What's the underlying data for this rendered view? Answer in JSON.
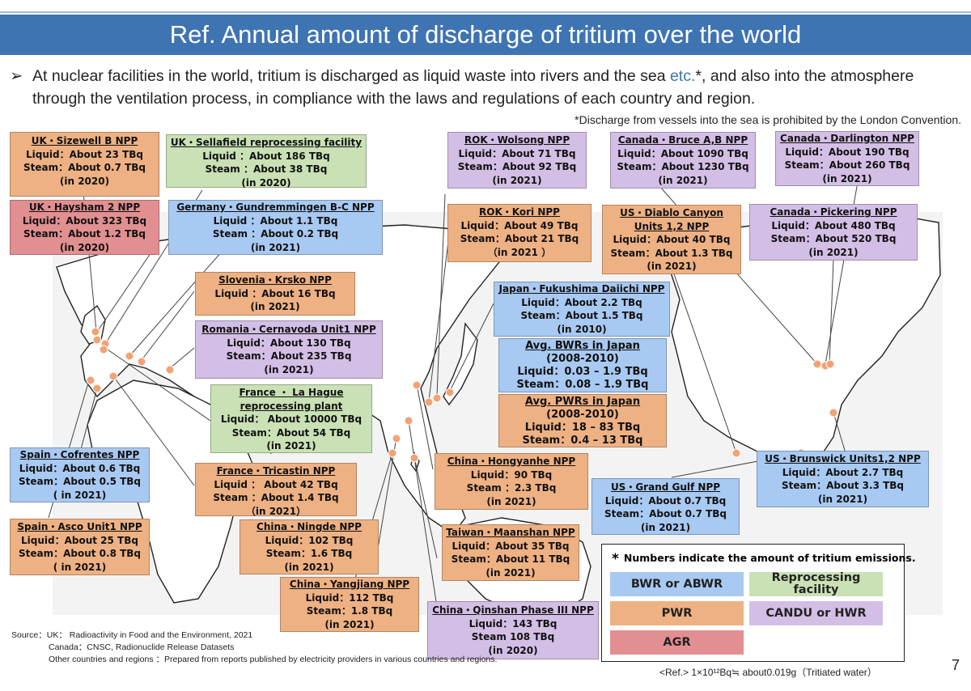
{
  "title": "Ref. Annual amount of discharge of tritium over the world",
  "intro": {
    "arrow": "➢",
    "text_before": "At nuclear facilities in the world, tritium is discharged as liquid waste into rivers and the sea ",
    "etc": "etc.",
    "text_after": "*, and also into the atmosphere through the ventilation process, in compliance with the laws and regulations of each country and region."
  },
  "note": "*Discharge from vessels into the sea is prohibited by the London Convention.",
  "colors": {
    "pwr": "#eeb183",
    "bwr": "#a8c9f1",
    "reprocessing": "#c9e1b5",
    "candu": "#d3bfe5",
    "agr": "#e28f91",
    "title_bar": "#3f74b3"
  },
  "facilities": {
    "sizewell": {
      "name": "UK・Sizewell B NPP",
      "liquid": "Liquid：About 23 TBq",
      "steam": "Steam：About 0.7 TBq",
      "year": "(in 2020)"
    },
    "sellafield": {
      "name": "UK・Sellafield reprocessing facility",
      "liquid": "Liquid ：About 186 TBq",
      "steam": "Steam  ：About 38 TBq",
      "year": "(in 2020)"
    },
    "haysham": {
      "name": "UK・Haysham 2 NPP",
      "liquid": "Liquid：About 323 TBq",
      "steam": "Steam：About 1.2 TBq",
      "year": "(in 2020)"
    },
    "gundremmingen": {
      "name": "Germany・Gundremmingen B-C NPP",
      "liquid": "Liquid ：About 1.1 TBq",
      "steam": "Steam ：About 0.2 TBq",
      "year": "(in 2021)"
    },
    "krsko": {
      "name": "Slovenia・Krsko NPP",
      "liquid": "Liquid ：About 16 TBq",
      "year": "(in 2021)"
    },
    "cernavoda": {
      "name": "Romania・Cernavoda Unit1 NPP",
      "liquid": "Liquid：About 130 TBq",
      "steam": "Steam：About 235 TBq",
      "year": "(in 2021)"
    },
    "lahague": {
      "name": "France ・ La Hague",
      "name2": "reprocessing plant",
      "liquid": "Liquid： About 10000 TBq",
      "steam": "Steam：About 54 TBq",
      "year": "(in 2021)"
    },
    "cofrentes": {
      "name": "Spain・Cofrentes NPP",
      "liquid": "Liquid：About 0.6 TBq",
      "steam": "Steam：About 0.5 TBq",
      "year": "( in 2021)"
    },
    "tricastin": {
      "name": "France・Tricastin NPP",
      "liquid": "Liquid ： About 42 TBq",
      "steam": "Steam ：About 1.4 TBq",
      "year": "（in 2021）"
    },
    "asco": {
      "name": "Spain・Asco Unit1 NPP",
      "liquid": "Liquid：About 25 TBq",
      "steam": "Steam：About 0.8 TBq",
      "year": "( in 2021)"
    },
    "ningde": {
      "name": "China・Ningde NPP",
      "liquid": "Liquid：102 TBq",
      "steam": "Steam：1.6 TBq",
      "year": "(in 2021)"
    },
    "yangjiang": {
      "name": "China・Yangjiang NPP",
      "liquid": "Liquid：112 TBq",
      "steam": "Steam：1.8 TBq",
      "year": "(in 2021)"
    },
    "wolsong": {
      "name": "ROK・Wolsong NPP",
      "liquid": "Liquid：About 71 TBq",
      "steam": "Steam：About 92 TBq",
      "year": "(in 2021)"
    },
    "kori": {
      "name": "ROK・Kori NPP",
      "liquid": "Liquid：About 49 TBq",
      "steam": "Steam：About 21 TBq",
      "year": "（in 2021 ）"
    },
    "fukushima": {
      "name": "Japan・Fukushima Daiichi NPP",
      "liquid": "Liquid：About 2.2 TBq",
      "steam": "Steam：About  1.5 TBq",
      "year": "(in 2010)"
    },
    "bwr_japan": {
      "name": "Avg. BWRs in Japan",
      "period": "(2008-2010)",
      "liquid": "Liquid：0.03 – 1.9 TBq",
      "steam": "Steam：0.08 – 1.9 TBq"
    },
    "pwr_japan": {
      "name": "Avg. PWRs in Japan",
      "period": "(2008-2010)",
      "liquid": "Liquid：18 – 83  TBq",
      "steam": "Steam：0.4 – 13 TBq"
    },
    "hongyanhe": {
      "name": "China・Hongyanhe NPP",
      "liquid": "Liquid：90 TBq",
      "steam": "Steam   ：2.3 TBq",
      "year": "(in 2021)"
    },
    "maanshan": {
      "name": "Taiwan・Maanshan NPP",
      "liquid": "Liquid：About 35 TBq",
      "steam": "Steam：About 11 TBq",
      "year": "(in 2021)"
    },
    "qinshan": {
      "name": "China・Qinshan Phase III NPP",
      "liquid": "Liquid：143 TBq",
      "steam": "Steam 108 TBq",
      "year": "(in 2020)"
    },
    "bruce": {
      "name": "Canada・Bruce A,B NPP",
      "liquid": "Liquid：About 1090 TBq",
      "steam": "Steam：About 1230 TBq",
      "year": "(in 2021)"
    },
    "darlington": {
      "name": "Canada・Darlington NPP",
      "liquid": "Liquid：About 190 TBq",
      "steam": "Steam：About 260 TBq",
      "year": "(in 2021)"
    },
    "diablo": {
      "name": "US・Diablo Canyon",
      "name2": "Units 1,2 NPP",
      "liquid": "Liquid：About 40 TBq",
      "steam": "Steam：About 1.3 TBq",
      "year": "(in 2021)"
    },
    "pickering": {
      "name": "Canada・Pickering NPP",
      "liquid": "Liquid：About 480 TBq",
      "steam": "Steam：About 520 TBq",
      "year": "(in 2021)"
    },
    "brunswick": {
      "name": "US・Brunswick Units1,2 NPP",
      "liquid": "Liquid：About 2.7 TBq",
      "steam": "Steam：About 3.3 TBq",
      "year": "(in 2021)"
    },
    "grandgulf": {
      "name": "US・Grand Gulf NPP",
      "liquid": "Liquid：About 0.7 TBq",
      "steam": "Steam：About 0.7 TBq",
      "year": "(in 2021)"
    }
  },
  "legend": {
    "title_mark": "*",
    "title": "Numbers indicate the amount of tritium emissions.",
    "bwr": "BWR or ABWR",
    "reprocessing": "Reprocessing facility",
    "pwr": "PWR",
    "candu": "CANDU or HWR",
    "agr": "AGR"
  },
  "source": {
    "line1": "Source：UK：   Radioactivity in Food and the Environment, 2021",
    "line2": "Canada：CNSC, Radionuclide Release Datasets",
    "line3": "Other countries and regions ：Prepared from reports published by electricity providers in various countries and regions."
  },
  "ref": "<Ref.> 1×10¹²Bq≒ about0.019g（Tritiated water）",
  "page_number": "7"
}
